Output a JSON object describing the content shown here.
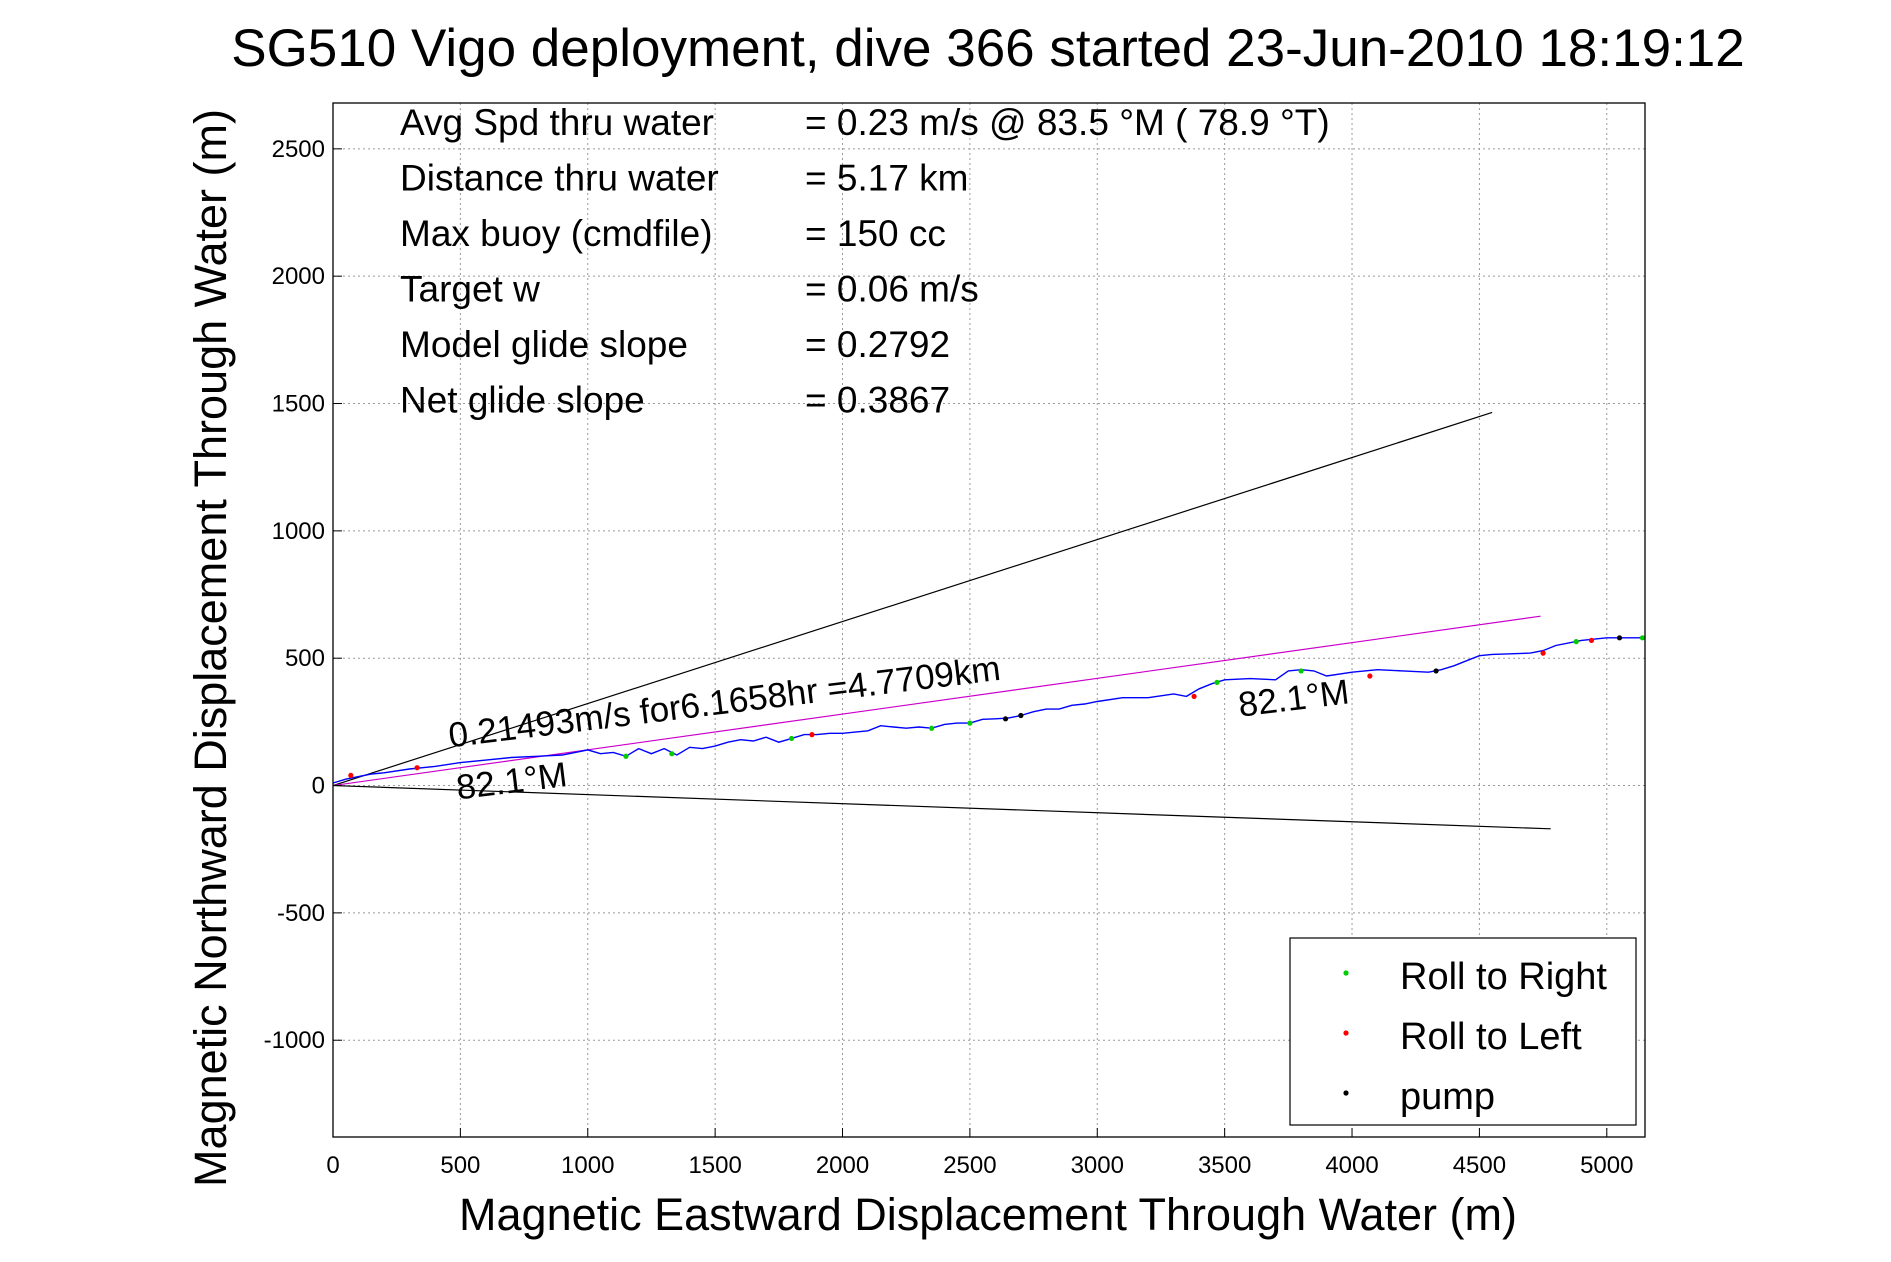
{
  "chart_data": {
    "type": "line",
    "title": "SG510 Vigo deployment, dive 366 started 23-Jun-2010 18:19:12",
    "xlabel": "Magnetic Eastward Displacement Through Water (m)",
    "ylabel": "Magnetic Northward Displacement Through Water (m)",
    "xlim": [
      0,
      5150
    ],
    "ylim": [
      -1380,
      2680
    ],
    "xticks": [
      0,
      500,
      1000,
      1500,
      2000,
      2500,
      3000,
      3500,
      4000,
      4500,
      5000
    ],
    "yticks": [
      -1000,
      -500,
      0,
      500,
      1000,
      1500,
      2000,
      2500
    ],
    "grid": true,
    "legend_position": "bottom-right",
    "info_lines": [
      {
        "label": "Avg Spd thru water",
        "value": "=  0.23 m/s @  83.5 °M ( 78.9 °T)"
      },
      {
        "label": "Distance thru water",
        "value": "=  5.17 km"
      },
      {
        "label": "Max buoy (cmdfile)",
        "value": "= 150 cc"
      },
      {
        "label": "Target w",
        "value": "= 0.06 m/s"
      },
      {
        "label": "Model glide slope",
        "value": "= 0.2792"
      },
      {
        "label": "Net glide slope",
        "value": "= 0.3867"
      }
    ],
    "annotations": [
      {
        "text": "0.21493m/s for6.1658hr =4.7709km",
        "x": 460,
        "y": 150,
        "rotation_deg": -7
      },
      {
        "text": "82.1°M",
        "x": 490,
        "y": -55,
        "rotation_deg": -7
      },
      {
        "text": "82.1°M",
        "x": 3560,
        "y": 270,
        "rotation_deg": -7
      }
    ],
    "legend": [
      {
        "name": "Roll to Right",
        "color": "#00cc00"
      },
      {
        "name": "Roll to Left",
        "color": "#ff0000"
      },
      {
        "name": "pump",
        "color": "#000000"
      }
    ],
    "reference_lines": [
      {
        "color": "#000000",
        "x": [
          0,
          4550
        ],
        "y": [
          0,
          1465
        ]
      },
      {
        "color": "#000000",
        "x": [
          0,
          4780
        ],
        "y": [
          0,
          -170
        ]
      },
      {
        "color": "#cc00cc",
        "x": [
          0,
          4740
        ],
        "y": [
          0,
          665
        ]
      }
    ],
    "track": {
      "color": "#0000ff",
      "x": [
        0,
        50,
        100,
        150,
        200,
        300,
        400,
        500,
        600,
        700,
        800,
        900,
        1000,
        1050,
        1100,
        1150,
        1200,
        1250,
        1300,
        1350,
        1400,
        1450,
        1500,
        1550,
        1600,
        1650,
        1700,
        1750,
        1800,
        1850,
        1900,
        1950,
        2000,
        2050,
        2100,
        2150,
        2200,
        2250,
        2300,
        2350,
        2400,
        2450,
        2500,
        2550,
        2600,
        2650,
        2700,
        2750,
        2800,
        2850,
        2900,
        2950,
        3000,
        3100,
        3200,
        3300,
        3350,
        3400,
        3450,
        3500,
        3600,
        3700,
        3750,
        3800,
        3850,
        3900,
        4000,
        4100,
        4200,
        4300,
        4350,
        4400,
        4450,
        4500,
        4550,
        4700,
        4750,
        4800,
        4900,
        5000,
        5100,
        5150
      ],
      "y": [
        10,
        25,
        35,
        45,
        50,
        65,
        75,
        90,
        100,
        110,
        115,
        120,
        140,
        125,
        130,
        115,
        145,
        125,
        145,
        120,
        150,
        145,
        155,
        170,
        180,
        175,
        190,
        170,
        185,
        200,
        200,
        205,
        205,
        210,
        215,
        235,
        230,
        225,
        230,
        225,
        240,
        245,
        245,
        260,
        262,
        265,
        275,
        290,
        300,
        300,
        315,
        320,
        330,
        345,
        345,
        360,
        350,
        380,
        400,
        415,
        420,
        415,
        450,
        455,
        450,
        430,
        445,
        455,
        450,
        445,
        455,
        470,
        490,
        510,
        515,
        520,
        530,
        550,
        570,
        580,
        580,
        580
      ]
    },
    "markers": [
      {
        "type": "Roll to Right",
        "x": 1150,
        "y": 115
      },
      {
        "type": "Roll to Right",
        "x": 1330,
        "y": 125
      },
      {
        "type": "Roll to Right",
        "x": 1800,
        "y": 185
      },
      {
        "type": "Roll to Right",
        "x": 2350,
        "y": 225
      },
      {
        "type": "Roll to Right",
        "x": 2500,
        "y": 245
      },
      {
        "type": "Roll to Right",
        "x": 3470,
        "y": 405
      },
      {
        "type": "Roll to Right",
        "x": 3800,
        "y": 450
      },
      {
        "type": "Roll to Right",
        "x": 4880,
        "y": 565
      },
      {
        "type": "Roll to Right",
        "x": 5140,
        "y": 580
      },
      {
        "type": "Roll to Left",
        "x": 70,
        "y": 40
      },
      {
        "type": "Roll to Left",
        "x": 330,
        "y": 70
      },
      {
        "type": "Roll to Left",
        "x": 1880,
        "y": 200
      },
      {
        "type": "Roll to Left",
        "x": 3380,
        "y": 350
      },
      {
        "type": "Roll to Left",
        "x": 4070,
        "y": 430
      },
      {
        "type": "Roll to Left",
        "x": 4750,
        "y": 520
      },
      {
        "type": "Roll to Left",
        "x": 4940,
        "y": 570
      },
      {
        "type": "pump",
        "x": 2640,
        "y": 262
      },
      {
        "type": "pump",
        "x": 2700,
        "y": 275
      },
      {
        "type": "pump",
        "x": 4330,
        "y": 450
      },
      {
        "type": "pump",
        "x": 5050,
        "y": 580
      }
    ]
  }
}
